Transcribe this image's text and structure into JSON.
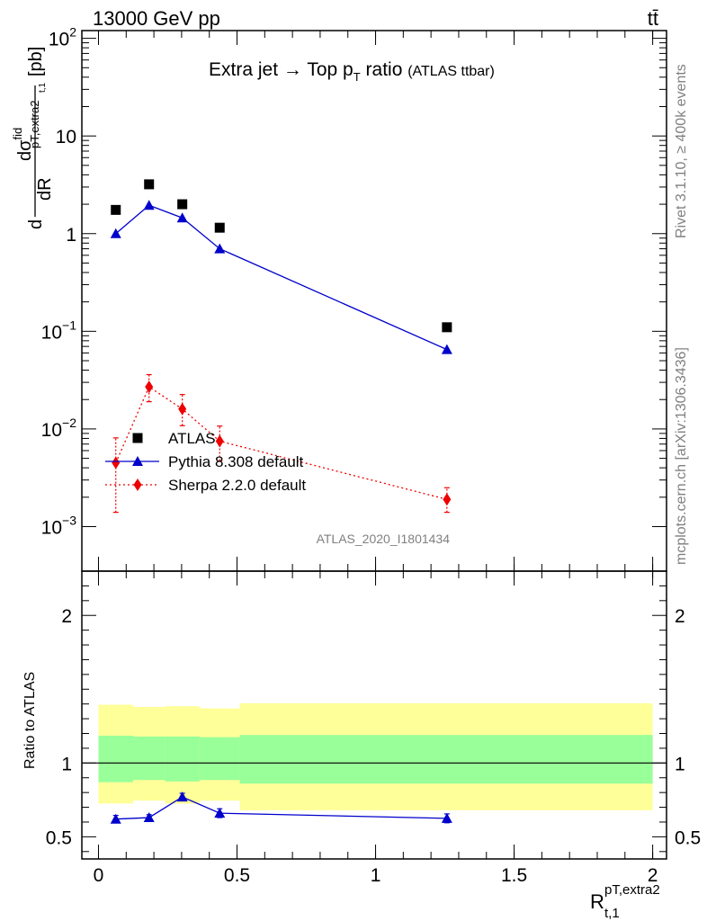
{
  "header": {
    "energy_label": "13000 GeV pp",
    "process_label": "tt̄"
  },
  "side_labels": {
    "rivet": "Rivet 3.1.10, ≥ 400k events",
    "mcplots": "mcplots.cern.ch [arXiv:1306.3436]"
  },
  "chart_data": [
    {
      "type": "scatter",
      "title_main": "Extra jet",
      "title_arrow": "→",
      "title_mid": "Top p",
      "title_sub": "T",
      "title_tail": "ratio",
      "title_small": "(ATLAS ttbar)",
      "analysis_tag": "ATLAS_2020_I1801434",
      "ylabel": {
        "a": "d",
        "b": "dσ",
        "c": "fid",
        "d": "pT,extra2",
        "e": "t,1",
        "f": "dR",
        "g": "[pb]"
      },
      "xlim": [
        -0.06,
        2.05
      ],
      "ylim": [
        0.00035,
        120
      ],
      "yscale": "log",
      "yticks": [
        {
          "v": 100,
          "base": "10",
          "exp": "2"
        },
        {
          "v": 10,
          "base": "10",
          "exp": ""
        },
        {
          "v": 1,
          "base": "1",
          "exp": ""
        },
        {
          "v": 0.1,
          "base": "10",
          "exp": "−1"
        },
        {
          "v": 0.01,
          "base": "10",
          "exp": "−2"
        },
        {
          "v": 0.001,
          "base": "10",
          "exp": "−3"
        }
      ],
      "legend_position": "lower-left",
      "series": [
        {
          "name": "ATLAS",
          "color": "#000000",
          "marker": "square",
          "line": "none",
          "x": [
            0.0625,
            0.1825,
            0.3025,
            0.4375,
            1.2575
          ],
          "y": [
            1.75,
            3.2,
            2.0,
            1.15,
            0.11
          ],
          "err": [
            0,
            0,
            0,
            0,
            0
          ]
        },
        {
          "name": "Pythia 8.308 default",
          "color": "#0000cc",
          "marker": "triangle",
          "line": "solid",
          "x": [
            0.0625,
            0.1825,
            0.3025,
            0.4375,
            1.2575
          ],
          "y": [
            1.0,
            1.95,
            1.45,
            0.7,
            0.065
          ],
          "err": [
            0,
            0,
            0,
            0,
            0
          ]
        },
        {
          "name": "Sherpa 2.2.0 default",
          "color": "#ee0000",
          "marker": "diamond",
          "line": "dotted",
          "x": [
            0.0625,
            0.1825,
            0.3025,
            0.4375,
            1.2575
          ],
          "y": [
            0.0045,
            0.027,
            0.016,
            0.0075,
            0.0019
          ],
          "err_lo": [
            0.0031,
            0.008,
            0.0052,
            0.0028,
            0.0005
          ],
          "err_hi": [
            0.0036,
            0.009,
            0.0065,
            0.0032,
            0.0006
          ]
        }
      ]
    },
    {
      "type": "scatter",
      "ylabel": "Ratio to ATLAS",
      "xlabel": {
        "main": "R",
        "sup": "pT,extra2",
        "sub": "t,1"
      },
      "xlim": [
        -0.06,
        2.05
      ],
      "ylim": [
        0.35,
        2.3
      ],
      "yticks": [
        0.5,
        1,
        2
      ],
      "xticks": [
        {
          "v": 0,
          "label": "0"
        },
        {
          "v": 0.5,
          "label": "0.5"
        },
        {
          "v": 1,
          "label": "1"
        },
        {
          "v": 1.5,
          "label": "1.5"
        },
        {
          "v": 2,
          "label": "2"
        }
      ],
      "bands": {
        "edges": [
          0.0,
          0.125,
          0.24,
          0.365,
          0.51,
          2.0
        ],
        "outer_lo": [
          0.725,
          0.745,
          0.725,
          0.745,
          0.68
        ],
        "outer_hi": [
          1.395,
          1.38,
          1.385,
          1.37,
          1.405
        ],
        "inner_lo": [
          0.87,
          0.885,
          0.875,
          0.885,
          0.86
        ],
        "inner_hi": [
          1.185,
          1.18,
          1.18,
          1.175,
          1.19
        ],
        "outer_color": "#ffff99",
        "inner_color": "#99ff99"
      },
      "series": [
        {
          "name": "Pythia 8.308 default",
          "color": "#0000cc",
          "x": [
            0.0625,
            0.1825,
            0.3025,
            0.4375,
            1.2575
          ],
          "y": [
            0.62,
            0.63,
            0.77,
            0.66,
            0.625
          ],
          "err": [
            0.025,
            0.02,
            0.025,
            0.03,
            0.03
          ]
        }
      ]
    }
  ]
}
